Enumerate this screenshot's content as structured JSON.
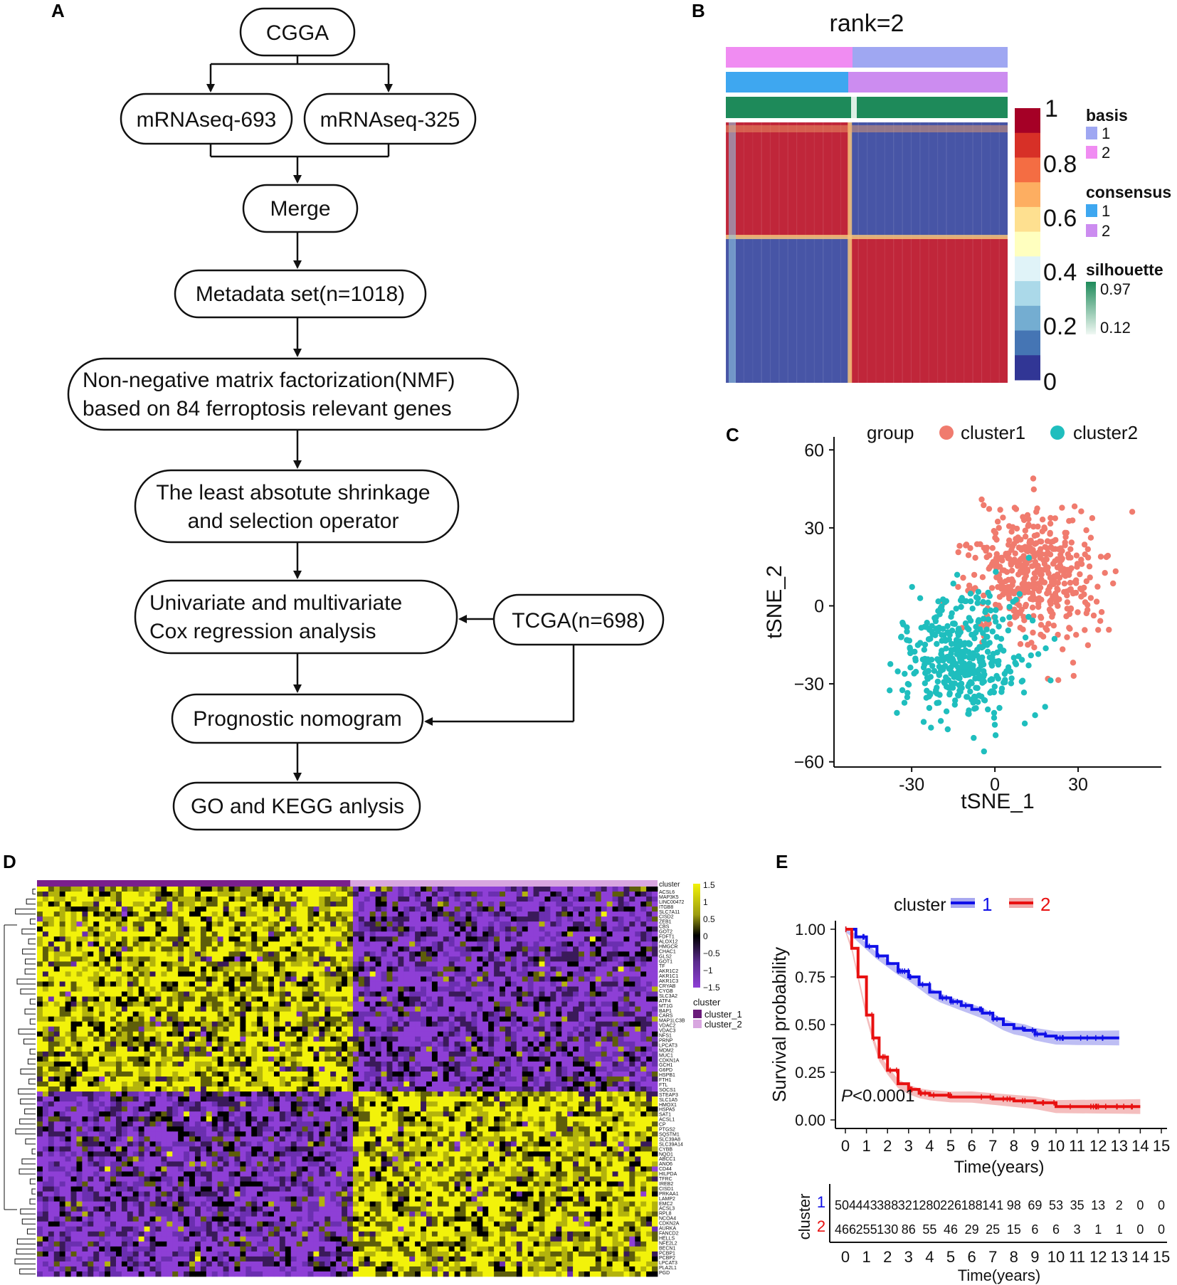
{
  "panels": {
    "A": "A",
    "B": "B",
    "C": "C",
    "D": "D",
    "E": "E"
  },
  "flowchart": {
    "nodes": [
      {
        "id": "cgga",
        "lines": [
          "CGGA"
        ]
      },
      {
        "id": "mrna693",
        "lines": [
          "mRNAseq-693"
        ]
      },
      {
        "id": "mrna325",
        "lines": [
          "mRNAseq-325"
        ]
      },
      {
        "id": "merge",
        "lines": [
          "Merge"
        ]
      },
      {
        "id": "metadata",
        "lines": [
          "Metadata set(n=1018)"
        ]
      },
      {
        "id": "nmf",
        "lines": [
          "Non-negative matrix factorization(NMF)",
          "based on 84 ferroptosis relevant genes"
        ]
      },
      {
        "id": "lasso",
        "lines": [
          "The least absotute shrinkage",
          "and selection operator"
        ]
      },
      {
        "id": "cox",
        "lines": [
          "Univariate and multivariate",
          "Cox regression analysis"
        ]
      },
      {
        "id": "tcga",
        "lines": [
          "TCGA(n=698)"
        ]
      },
      {
        "id": "nomogram",
        "lines": [
          "Prognostic nomogram"
        ]
      },
      {
        "id": "gokegg",
        "lines": [
          "GO and KEGG anlysis"
        ]
      }
    ]
  },
  "consensus": {
    "title": "rank=2",
    "colorbar_ticks": [
      "1",
      "0.8",
      "0.6",
      "0.4",
      "0.2",
      "0"
    ],
    "colorbar_colors": [
      "#A50026",
      "#D73027",
      "#F46D43",
      "#FDAE61",
      "#FEE090",
      "#FFFFBF",
      "#E0F3F8",
      "#ABD9E9",
      "#74ADD1",
      "#4575B4",
      "#313695"
    ],
    "legend": {
      "basis_title": "basis",
      "basis_items": [
        "1",
        "2"
      ],
      "basis_colors": [
        "#9FA7F2",
        "#F08CF2"
      ],
      "consensus_title": "consensus",
      "consensus_items": [
        "1",
        "2"
      ],
      "consensus_colors": [
        "#3EA7F0",
        "#CC8CF0"
      ],
      "silhouette_title": "silhouette",
      "silhouette_max": "0.97",
      "silhouette_min": "0.12"
    },
    "block_colors": {
      "high": "#C0263A",
      "low": "#4755A6"
    }
  },
  "chart_data": [
    {
      "type": "scatter",
      "title": "",
      "xlabel": "tSNE_1",
      "ylabel": "tSNE_2",
      "xlim": [
        -58,
        60
      ],
      "ylim": [
        -62,
        65
      ],
      "xticks": [
        "-30",
        "0",
        "30"
      ],
      "xtick_values": [
        -30,
        0,
        30
      ],
      "yticks": [
        "60",
        "30",
        "0",
        "−30",
        "−60"
      ],
      "ytick_values": [
        60,
        30,
        0,
        -30,
        -60
      ],
      "legend_title": "group",
      "series": [
        {
          "name": "cluster1",
          "color": "#F07B6E",
          "center": [
            15,
            12
          ],
          "spread": [
            20,
            20
          ],
          "n": 460
        },
        {
          "name": "cluster2",
          "color": "#1FBEBE",
          "center": [
            -12,
            -20
          ],
          "spread": [
            18,
            20
          ],
          "n": 420
        }
      ]
    },
    {
      "type": "heatmap",
      "title": "",
      "cluster_label": "cluster",
      "scale_ticks": [
        "1.5",
        "1",
        "0.5",
        "0",
        "−0.5",
        "−1",
        "−1.5"
      ],
      "scale_colors": [
        "#F2F20A",
        "#9C9C10",
        "#000000",
        "#5A2A8C",
        "#8E3FD6"
      ],
      "legend_title": "cluster",
      "legend_items": [
        "cluster_1",
        "cluster_2"
      ],
      "legend_colors": [
        "#6A1B7A",
        "#D8A6E0"
      ],
      "genes": [
        "ACSL6",
        "MAP3K5",
        "LINC00472",
        "ITGB8",
        "SLC7A11",
        "CISD2",
        "ZEB1",
        "CBS",
        "GOT2",
        "FDFT1",
        "ALOX12",
        "HMGCR",
        "CHAC1",
        "GLS2",
        "GOT1",
        "TF",
        "AKR1C2",
        "AKR1C1",
        "AKR1C3",
        "CRYAB",
        "CYGB",
        "SLC3A2",
        "ATF4",
        "MT1G",
        "BAP1",
        "CARS",
        "MAP1LC3B",
        "VDAC2",
        "VDAC3",
        "NFS1",
        "PRNP",
        "LPCAT3",
        "MDM2",
        "MUC1",
        "CDKN1A",
        "GCH1",
        "G6PD",
        "HSPB1",
        "FTH1",
        "FTL",
        "SOCS1",
        "STEAP3",
        "SLC1A5",
        "HMOX1",
        "HSPA5",
        "SAT1",
        "ACSL1",
        "CP",
        "PTGS2",
        "SQSTM1",
        "SLC39A8",
        "SLC39A14",
        "CYBB",
        "NQO1",
        "ABCC1",
        "ANO6",
        "CD44",
        "HILPDA",
        "TFRC",
        "IREB2",
        "CISD1",
        "PRKAA1",
        "LAMP2",
        "EMC2",
        "ACSL3",
        "RPL8",
        "NCOA4",
        "CDKN2A",
        "AURKA",
        "FANCD2",
        "HELLS",
        "NFE2L2",
        "BECN1",
        "PCBP1",
        "PCBP2",
        "LPCAT3",
        "PLA2L1",
        "PGD"
      ],
      "n_genes_shown": 78
    },
    {
      "type": "line",
      "title": "",
      "xlabel": "Time(years)",
      "ylabel": "Survival probability",
      "xlim": [
        0,
        15
      ],
      "ylim": [
        0,
        1
      ],
      "xticks": [
        "0",
        "1",
        "2",
        "3",
        "4",
        "5",
        "6",
        "7",
        "8",
        "9",
        "10",
        "11",
        "12",
        "13",
        "14",
        "15"
      ],
      "yticks": [
        "1.00",
        "0.75",
        "0.50",
        "0.25",
        "0.00"
      ],
      "ytick_values": [
        1,
        0.75,
        0.5,
        0.25,
        0
      ],
      "legend_title": "cluster",
      "pvalue_label": "<0.0001",
      "pvalue_prefix": "P",
      "series": [
        {
          "name": "1",
          "color": "#1010E8",
          "band": "#A8A8F0",
          "x": [
            0,
            0.5,
            1,
            1.5,
            2,
            2.5,
            3,
            3.5,
            4,
            4.5,
            5,
            5.5,
            6,
            6.5,
            7,
            7.5,
            8,
            8.5,
            9,
            9.5,
            10,
            10.5,
            11,
            12,
            13
          ],
          "y": [
            1.0,
            0.96,
            0.91,
            0.86,
            0.82,
            0.78,
            0.75,
            0.71,
            0.67,
            0.64,
            0.62,
            0.6,
            0.58,
            0.56,
            0.53,
            0.5,
            0.48,
            0.47,
            0.45,
            0.44,
            0.43,
            0.43,
            0.43,
            0.43,
            0.43
          ]
        },
        {
          "name": "2",
          "color": "#E81010",
          "band": "#F0A8A8",
          "x": [
            0,
            0.3,
            0.6,
            1,
            1.3,
            1.6,
            2,
            2.5,
            3,
            3.5,
            4,
            5,
            6,
            7,
            8,
            9,
            10,
            11,
            12,
            13,
            14
          ],
          "y": [
            1.0,
            0.9,
            0.75,
            0.55,
            0.43,
            0.33,
            0.26,
            0.19,
            0.16,
            0.14,
            0.13,
            0.12,
            0.12,
            0.11,
            0.1,
            0.09,
            0.07,
            0.07,
            0.07,
            0.07,
            0.07
          ]
        }
      ]
    }
  ],
  "risk_table": {
    "ylabel": "cluster",
    "xlabel": "Time(years)",
    "xticks": [
      "0",
      "1",
      "2",
      "3",
      "4",
      "5",
      "6",
      "7",
      "8",
      "9",
      "10",
      "11",
      "12",
      "13",
      "14",
      "15"
    ],
    "rows": [
      {
        "label": "1",
        "color": "#1010E8",
        "values": [
          "504",
          "443",
          "388",
          "321",
          "280",
          "226",
          "188",
          "141",
          "98",
          "69",
          "53",
          "35",
          "13",
          "2",
          "0",
          "0"
        ]
      },
      {
        "label": "2",
        "color": "#E81010",
        "values": [
          "466",
          "255",
          "130",
          "86",
          "55",
          "46",
          "29",
          "25",
          "15",
          "6",
          "6",
          "3",
          "1",
          "1",
          "0",
          "0"
        ]
      }
    ]
  }
}
